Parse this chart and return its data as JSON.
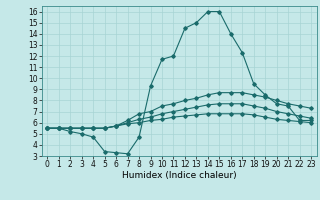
{
  "title": "",
  "xlabel": "Humidex (Indice chaleur)",
  "xlim": [
    -0.5,
    23.5
  ],
  "ylim": [
    3,
    16.5
  ],
  "yticks": [
    3,
    4,
    5,
    6,
    7,
    8,
    9,
    10,
    11,
    12,
    13,
    14,
    15,
    16
  ],
  "xticks": [
    0,
    1,
    2,
    3,
    4,
    5,
    6,
    7,
    8,
    9,
    10,
    11,
    12,
    13,
    14,
    15,
    16,
    17,
    18,
    19,
    20,
    21,
    22,
    23
  ],
  "bg_color": "#c5e8e8",
  "grid_color": "#a8d4d4",
  "line_color": "#1a6b6b",
  "lines": [
    [
      5.5,
      5.5,
      5.2,
      5.0,
      4.7,
      3.4,
      3.3,
      3.2,
      4.7,
      9.3,
      11.7,
      12.0,
      14.5,
      15.0,
      16.0,
      16.0,
      14.0,
      12.3,
      9.5,
      8.5,
      7.7,
      7.5,
      6.2,
      6.2
    ],
    [
      5.5,
      5.5,
      5.5,
      5.5,
      5.5,
      5.5,
      5.7,
      6.2,
      6.8,
      7.0,
      7.5,
      7.7,
      8.0,
      8.2,
      8.5,
      8.7,
      8.7,
      8.7,
      8.5,
      8.3,
      8.0,
      7.7,
      7.5,
      7.3
    ],
    [
      5.5,
      5.5,
      5.5,
      5.5,
      5.5,
      5.5,
      5.7,
      6.0,
      6.3,
      6.5,
      6.8,
      7.0,
      7.2,
      7.4,
      7.6,
      7.7,
      7.7,
      7.7,
      7.5,
      7.3,
      7.0,
      6.8,
      6.6,
      6.4
    ],
    [
      5.5,
      5.5,
      5.5,
      5.5,
      5.5,
      5.5,
      5.7,
      5.9,
      6.0,
      6.2,
      6.3,
      6.5,
      6.6,
      6.7,
      6.8,
      6.8,
      6.8,
      6.8,
      6.7,
      6.5,
      6.3,
      6.2,
      6.1,
      6.0
    ]
  ],
  "tick_fontsize": 5.5,
  "xlabel_fontsize": 6.5
}
